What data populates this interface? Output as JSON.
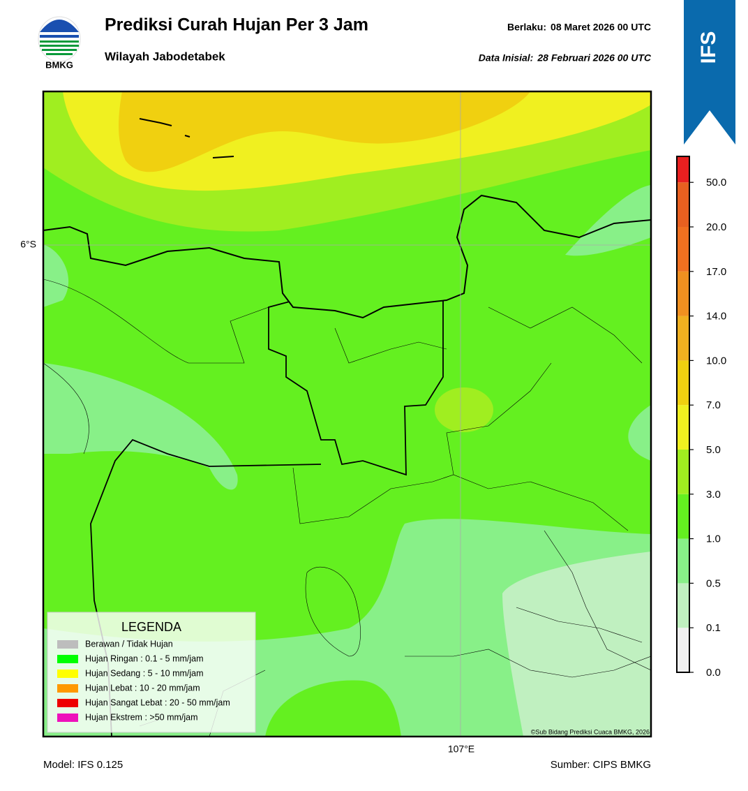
{
  "header": {
    "logo_text": "BMKG",
    "title": "Prediksi Curah Hujan Per 3 Jam",
    "subtitle": "Wilayah Jabodetabek",
    "valid_label": "Berlaku:",
    "valid": "08 Maret 2026 00 UTC",
    "init_label": "Data Inisial:",
    "init": "28 Februari 2026 00 UTC"
  },
  "badge": "IFS",
  "map": {
    "lat_label": "6°S",
    "lon_label": "107°E",
    "credit": "©Sub Bidang Prediksi Cuaca BMKG, 2026"
  },
  "legend": {
    "title": "LEGENDA",
    "items": [
      {
        "label": "Berawan / Tidak Hujan",
        "color": "#bdbdbd"
      },
      {
        "label": "Hujan Ringan : 0.1 - 5 mm/jam",
        "color": "#00ff00"
      },
      {
        "label": "Hujan Sedang : 5 - 10 mm/jam",
        "color": "#ffff00"
      },
      {
        "label": "Hujan Lebat : 10 - 20 mm/jam",
        "color": "#ff9900"
      },
      {
        "label": "Hujan Sangat Lebat : 20 - 50 mm/jam",
        "color": "#ee0000"
      },
      {
        "label": "Hujan Ekstrem : >50 mm/jam",
        "color": "#ee11bb"
      }
    ]
  },
  "colorbar": {
    "ticks": [
      "0.0",
      "0.1",
      "0.5",
      "1.0",
      "3.0",
      "5.0",
      "7.0",
      "10.0",
      "14.0",
      "17.0",
      "20.0",
      "50.0"
    ],
    "colors": [
      "#f0f0f0",
      "#c0f0c0",
      "#88f088",
      "#64f020",
      "#a0ee20",
      "#f0f020",
      "#f0d010",
      "#f0b020",
      "#f09020",
      "#f07020",
      "#e86020",
      "#e82020",
      "#e020c0"
    ]
  },
  "footer": {
    "model": "Model: IFS 0.125",
    "source": "Sumber: CIPS BMKG"
  }
}
